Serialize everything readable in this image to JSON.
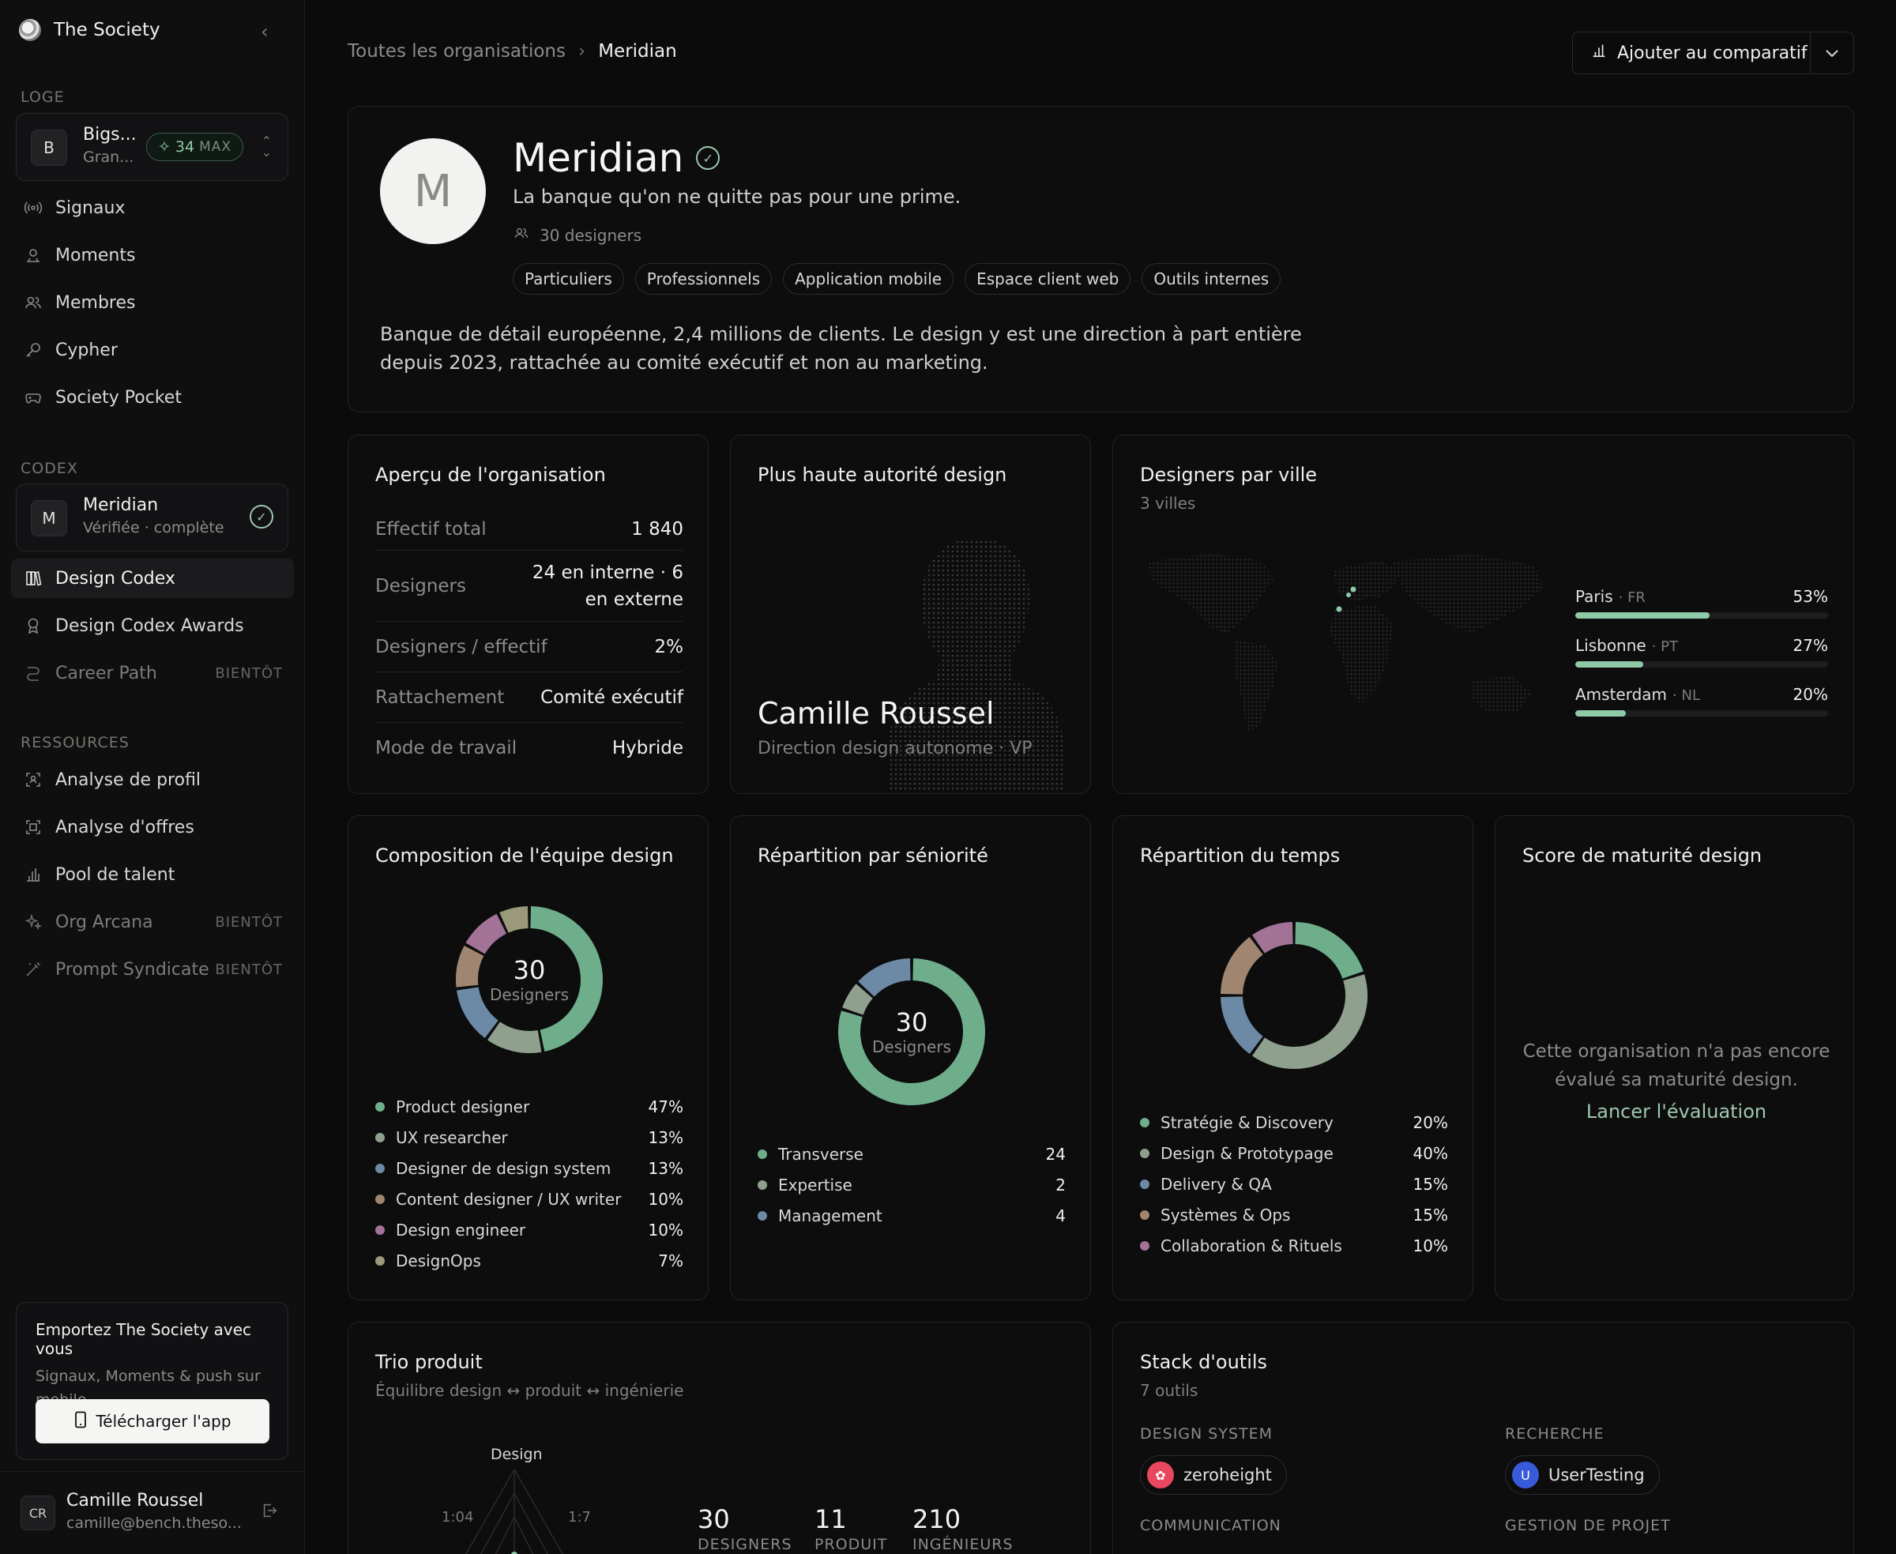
{
  "sidebar": {
    "brand": "The Society",
    "sections": {
      "loge": "LOGE",
      "codex": "CODEX",
      "ressources": "RESSOURCES"
    },
    "loge_picker": {
      "avatar": "B",
      "title": "Bigs...",
      "subtitle": "Gran...",
      "badge_value": "34",
      "badge_label": "MAX"
    },
    "loge_items": [
      {
        "label": "Signaux",
        "icon": "signal-icon"
      },
      {
        "label": "Moments",
        "icon": "moments-icon"
      },
      {
        "label": "Membres",
        "icon": "members-icon"
      },
      {
        "label": "Cypher",
        "icon": "key-icon"
      },
      {
        "label": "Society Pocket",
        "icon": "gamepad-icon"
      }
    ],
    "codex_picker": {
      "avatar": "M",
      "title": "Meridian",
      "subtitle": "Vérifiée · complète"
    },
    "codex_items": [
      {
        "label": "Design Codex",
        "icon": "book-icon"
      },
      {
        "label": "Design Codex Awards",
        "icon": "award-icon"
      },
      {
        "label": "Career Path",
        "icon": "path-icon",
        "soon": "BIENTÔT"
      }
    ],
    "resource_items": [
      {
        "label": "Analyse de profil",
        "icon": "profile-scan-icon"
      },
      {
        "label": "Analyse d'offres",
        "icon": "offer-scan-icon"
      },
      {
        "label": "Pool de talent",
        "icon": "bar-chart-icon"
      },
      {
        "label": "Org Arcana",
        "icon": "sparkle-icon",
        "soon": "BIENTÔT"
      },
      {
        "label": "Prompt Syndicate",
        "icon": "wand-icon",
        "soon": "BIENTÔT"
      }
    ],
    "promo": {
      "title": "Emportez The Society avec vous",
      "desc": "Signaux, Moments & push sur mobile.",
      "button": "Télécharger l'app"
    },
    "user": {
      "initials": "CR",
      "name": "Camille Roussel",
      "email": "camille@bench.theso..."
    }
  },
  "header": {
    "breadcrumb_root": "Toutes les organisations",
    "breadcrumb_current": "Meridian",
    "compare_button": "Ajouter au comparatif"
  },
  "org": {
    "initial": "M",
    "name": "Meridian",
    "tagline": "La banque qu'on ne quitte pas pour une prime.",
    "designers_count": "30 designers",
    "tags": [
      "Particuliers",
      "Professionnels",
      "Application mobile",
      "Espace client web",
      "Outils internes"
    ],
    "description": "Banque de détail européenne, 2,4 millions de clients. Le design y est une direction à part entière depuis 2023, rattachée au comité exécutif et non au marketing."
  },
  "overview": {
    "title": "Aperçu de l'organisation",
    "rows": [
      {
        "k": "Effectif total",
        "v": "1 840"
      },
      {
        "k": "Designers",
        "v": "24 en interne · 6 en externe"
      },
      {
        "k": "Designers / effectif",
        "v": "2%"
      },
      {
        "k": "Rattachement",
        "v": "Comité exécutif"
      },
      {
        "k": "Mode de travail",
        "v": "Hybride"
      }
    ]
  },
  "authority": {
    "title": "Plus haute autorité design",
    "name": "Camille Roussel",
    "role": "Direction design autonome · VP"
  },
  "cities": {
    "title": "Designers par ville",
    "subtitle": "3 villes",
    "items": [
      {
        "city": "Paris",
        "country": "FR",
        "pct_label": "53%",
        "pct": 53
      },
      {
        "city": "Lisbonne",
        "country": "PT",
        "pct_label": "27%",
        "pct": 27
      },
      {
        "city": "Amsterdam",
        "country": "NL",
        "pct_label": "20%",
        "pct": 20
      }
    ]
  },
  "composition": {
    "title": "Composition de l'équipe design",
    "center_number": "30",
    "center_label": "Designers",
    "items": [
      {
        "label": "Product designer",
        "value": "47%",
        "pct": 47,
        "color": "#6fae8b"
      },
      {
        "label": "UX researcher",
        "value": "13%",
        "pct": 13,
        "color": "#8fa18e"
      },
      {
        "label": "Designer de design system",
        "value": "13%",
        "pct": 13,
        "color": "#6c8aa5"
      },
      {
        "label": "Content designer / UX writer",
        "value": "10%",
        "pct": 10,
        "color": "#a08670"
      },
      {
        "label": "Design engineer",
        "value": "10%",
        "pct": 10,
        "color": "#a37397"
      },
      {
        "label": "DesignOps",
        "value": "7%",
        "pct": 7,
        "color": "#9a9a7a"
      }
    ]
  },
  "seniority": {
    "title": "Répartition par séniorité",
    "center_number": "30",
    "center_label": "Designers",
    "items": [
      {
        "label": "Transverse",
        "value": "24",
        "n": 24,
        "color": "#6fae8b"
      },
      {
        "label": "Expertise",
        "value": "2",
        "n": 2,
        "color": "#8fa18e"
      },
      {
        "label": "Management",
        "value": "4",
        "n": 4,
        "color": "#6c8aa5"
      }
    ]
  },
  "time": {
    "title": "Répartition du temps",
    "items": [
      {
        "label": "Stratégie & Discovery",
        "value": "20%",
        "pct": 20,
        "color": "#6fae8b"
      },
      {
        "label": "Design & Prototypage",
        "value": "40%",
        "pct": 40,
        "color": "#8fa18e"
      },
      {
        "label": "Delivery & QA",
        "value": "15%",
        "pct": 15,
        "color": "#6c8aa5"
      },
      {
        "label": "Systèmes & Ops",
        "value": "15%",
        "pct": 15,
        "color": "#a08670"
      },
      {
        "label": "Collaboration & Rituels",
        "value": "10%",
        "pct": 10,
        "color": "#a37397"
      }
    ]
  },
  "maturity": {
    "title": "Score de maturité design",
    "message": "Cette organisation n'a pas encore évalué sa maturité design.",
    "link": "Lancer l'évaluation"
  },
  "trio": {
    "title": "Trio produit",
    "subtitle": "Équilibre design ↔ produit ↔ ingénierie",
    "radar_top": "Design",
    "radar_left": "1:04",
    "radar_right": "1:7",
    "stats": [
      {
        "n": "30",
        "l": "DESIGNERS"
      },
      {
        "n": "11",
        "l": "PRODUIT"
      },
      {
        "n": "210",
        "l": "INGÉNIEURS"
      }
    ]
  },
  "tools": {
    "title": "Stack d'outils",
    "subtitle": "7 outils",
    "categories": [
      {
        "label": "DESIGN SYSTEM",
        "tool": "zeroheight",
        "logo": "zeroheight-logo"
      },
      {
        "label": "RECHERCHE",
        "tool": "UserTesting",
        "logo": "usertesting-logo"
      },
      {
        "label": "COMMUNICATION"
      },
      {
        "label": "GESTION DE PROJET"
      }
    ]
  }
}
